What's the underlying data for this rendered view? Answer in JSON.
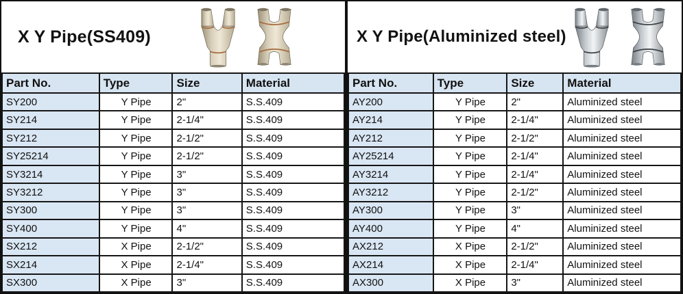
{
  "left": {
    "title": "X Y Pipe(SS409)",
    "headers": [
      "Part No.",
      "Type",
      "Size",
      "Material"
    ],
    "rows": [
      [
        "SY200",
        "Y Pipe",
        "2\"",
        "S.S.409"
      ],
      [
        "SY214",
        "Y Pipe",
        "2-1/4\"",
        "S.S.409"
      ],
      [
        "SY212",
        "Y Pipe",
        "2-1/2\"",
        "S.S.409"
      ],
      [
        "SY25214",
        "Y Pipe",
        "2-1/2\"",
        "S.S.409"
      ],
      [
        "SY3214",
        "Y Pipe",
        "3\"",
        "S.S.409"
      ],
      [
        "SY3212",
        "Y Pipe",
        "3\"",
        "S.S.409"
      ],
      [
        "SY300",
        "Y Pipe",
        "3\"",
        "S.S.409"
      ],
      [
        "SY400",
        "Y Pipe",
        "4\"",
        "S.S.409"
      ],
      [
        "SX212",
        "X Pipe",
        "2-1/2\"",
        "S.S.409"
      ],
      [
        "SX214",
        "X Pipe",
        "2-1/4\"",
        "S.S.409"
      ],
      [
        "SX300",
        "X Pipe",
        "3\"",
        "S.S.409"
      ]
    ],
    "images": [
      "y-pipe",
      "x-pipe"
    ]
  },
  "right": {
    "title": "X Y Pipe(Aluminized steel)",
    "headers": [
      "Part No.",
      "Type",
      "Size",
      "Material"
    ],
    "rows": [
      [
        "AY200",
        "Y Pipe",
        "2\"",
        "Aluminized steel"
      ],
      [
        "AY214",
        "Y Pipe",
        "2-1/4\"",
        "Aluminized steel"
      ],
      [
        "AY212",
        "Y Pipe",
        "2-1/2\"",
        "Aluminized steel"
      ],
      [
        "AY25214",
        "Y Pipe",
        "2-1/4\"",
        "Aluminized steel"
      ],
      [
        "AY3214",
        "Y Pipe",
        "2-1/4\"",
        "Aluminized steel"
      ],
      [
        "AY3212",
        "Y Pipe",
        "2-1/2\"",
        "Aluminized steel"
      ],
      [
        "AY300",
        "Y Pipe",
        "3\"",
        "Aluminized steel"
      ],
      [
        "AY400",
        "Y Pipe",
        "4\"",
        "Aluminized steel"
      ],
      [
        "AX212",
        "X Pipe",
        "2-1/2\"",
        "Aluminized steel"
      ],
      [
        "AX214",
        "X Pipe",
        "2-1/4\"",
        "Aluminized steel"
      ],
      [
        "AX300",
        "X Pipe",
        "3\"",
        "Aluminized steel"
      ]
    ],
    "images": [
      "y-pipe",
      "x-pipe"
    ]
  },
  "colors": {
    "header_bg": "#d7e4f1",
    "part_no_column_bg": "#d9e6f3",
    "table_border": "#151515",
    "ss409_steel": "#d8cfba",
    "ss409_weld": "#a46a3b",
    "aluminized_steel": "#c3c9cd",
    "aluminized_weld": "#3c4146"
  }
}
